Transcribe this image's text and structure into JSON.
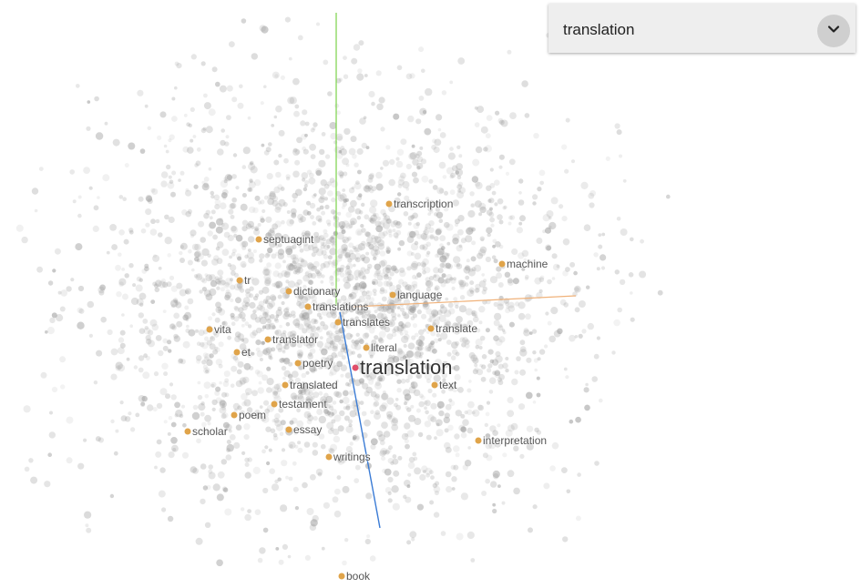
{
  "search": {
    "selected_value": "translation",
    "button_icon": "chevron-down-icon"
  },
  "projection": {
    "point_color": "#9a9a9a",
    "highlight_color": "#e0a44a",
    "selected_color": "#e04f6a",
    "axis_colors": {
      "y_axis": "#7ad34a",
      "x_axis": "#f0b27a",
      "z_axis": "#3a7bd5"
    }
  },
  "words": {
    "selected": "translation",
    "neighbors": [
      "transcription",
      "septuagint",
      "machine",
      "tr",
      "dictionary",
      "translations",
      "language",
      "translates",
      "translate",
      "vita",
      "translator",
      "literal",
      "et",
      "poetry",
      "text",
      "translated",
      "testament",
      "poem",
      "scholar",
      "essay",
      "interpretation",
      "writings",
      "book"
    ]
  }
}
